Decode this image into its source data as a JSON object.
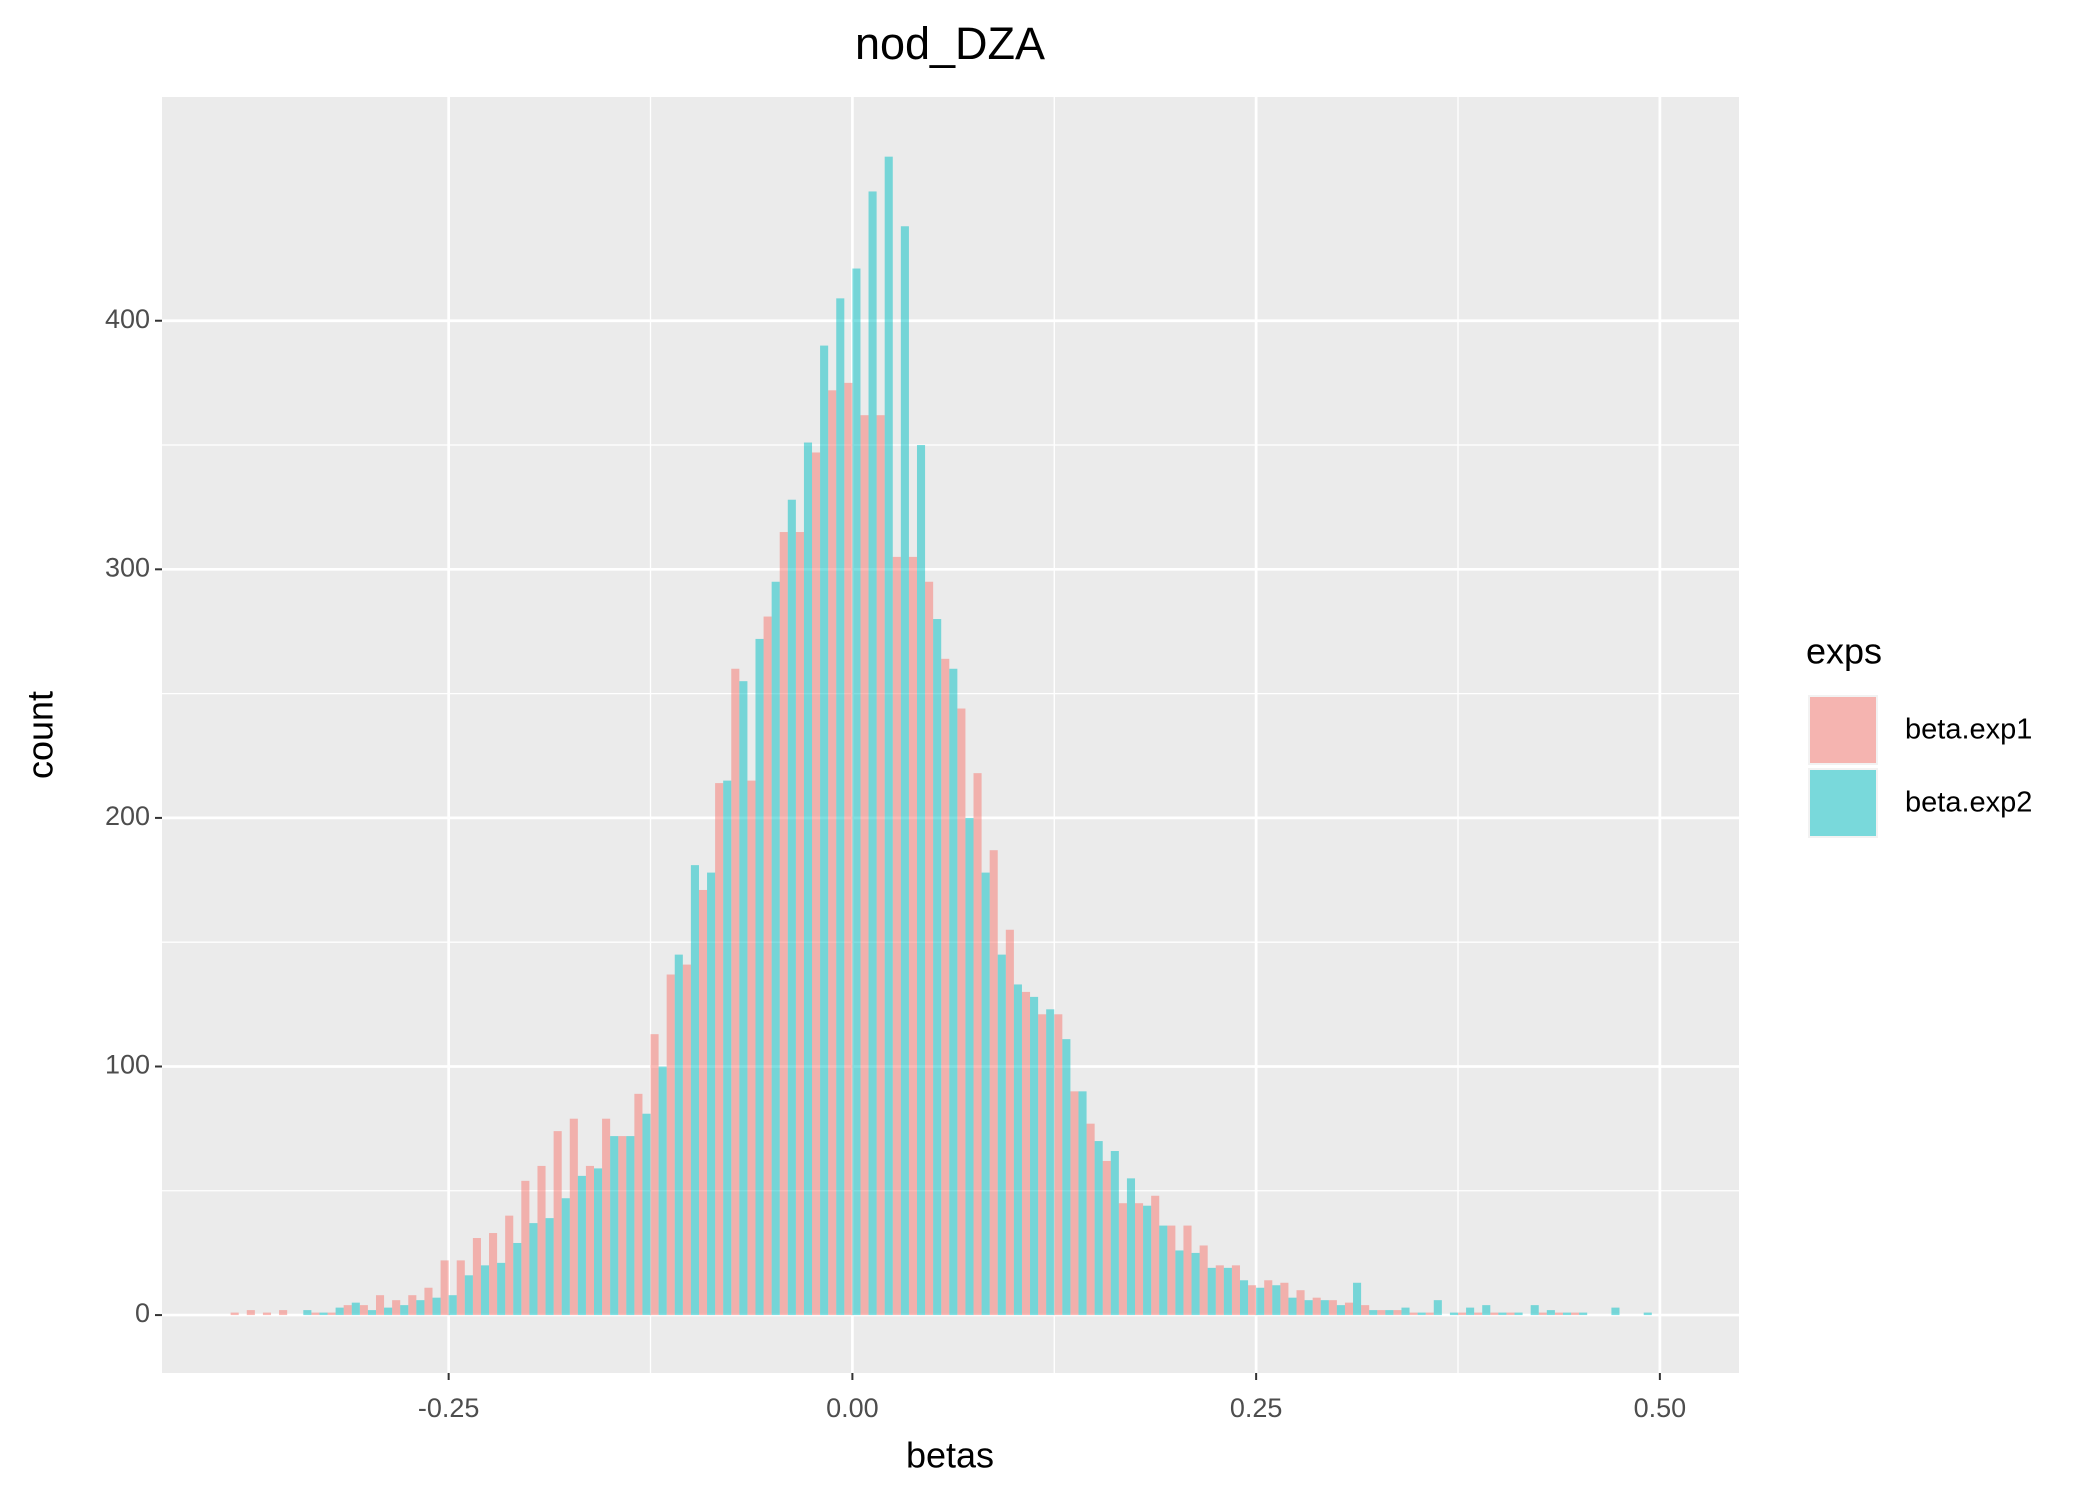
{
  "chart_data": {
    "type": "histogram",
    "title": "nod_DZA",
    "xlabel": "betas",
    "ylabel": "count",
    "legend_title": "exps",
    "legend_position": "right",
    "grid": true,
    "alpha": 0.5,
    "position": "dodge",
    "bins": [
      -0.385,
      -0.375,
      -0.365,
      -0.355,
      -0.345,
      -0.335,
      -0.325,
      -0.315,
      -0.305,
      -0.295,
      -0.285,
      -0.275,
      -0.265,
      -0.255,
      -0.245,
      -0.235,
      -0.225,
      -0.215,
      -0.205,
      -0.195,
      -0.185,
      -0.175,
      -0.165,
      -0.155,
      -0.145,
      -0.135,
      -0.125,
      -0.115,
      -0.105,
      -0.095,
      -0.085,
      -0.075,
      -0.065,
      -0.055,
      -0.045,
      -0.035,
      -0.025,
      -0.015,
      -0.005,
      0.005,
      0.015,
      0.025,
      0.035,
      0.045,
      0.055,
      0.065,
      0.075,
      0.085,
      0.095,
      0.105,
      0.115,
      0.125,
      0.135,
      0.145,
      0.155,
      0.165,
      0.175,
      0.185,
      0.195,
      0.205,
      0.215,
      0.225,
      0.235,
      0.245,
      0.255,
      0.265,
      0.275,
      0.285,
      0.295,
      0.305,
      0.315,
      0.325,
      0.335,
      0.345,
      0.355,
      0.365,
      0.375,
      0.385,
      0.395,
      0.405,
      0.415,
      0.425,
      0.435,
      0.445,
      0.455,
      0.465,
      0.475,
      0.485,
      0.495,
      0.505
    ],
    "series": [
      {
        "name": "beta.exp1",
        "color": "#F8766D",
        "values": [
          1,
          2,
          1,
          2,
          0,
          1,
          1,
          4,
          4,
          8,
          6,
          8,
          11,
          22,
          22,
          31,
          33,
          40,
          54,
          60,
          74,
          79,
          60,
          79,
          72,
          89,
          113,
          137,
          141,
          171,
          214,
          260,
          215,
          281,
          315,
          315,
          347,
          372,
          375,
          362,
          362,
          305,
          305,
          295,
          264,
          244,
          218,
          187,
          155,
          130,
          121,
          121,
          90,
          77,
          62,
          45,
          45,
          48,
          36,
          36,
          28,
          20,
          20,
          12,
          14,
          13,
          10,
          7,
          6,
          5,
          4,
          2,
          2,
          1,
          1,
          0,
          1,
          1,
          1,
          1,
          0,
          1,
          1,
          1,
          0,
          0,
          0,
          0,
          0
        ]
      },
      {
        "name": "beta.exp2",
        "color": "#00BFC4",
        "values": [
          0,
          0,
          0,
          0,
          2,
          1,
          3,
          5,
          2,
          3,
          4,
          6,
          7,
          8,
          16,
          20,
          21,
          29,
          37,
          39,
          47,
          56,
          59,
          72,
          72,
          81,
          100,
          145,
          181,
          178,
          215,
          255,
          272,
          295,
          328,
          351,
          390,
          409,
          421,
          452,
          466,
          438,
          350,
          280,
          260,
          200,
          178,
          145,
          133,
          128,
          123,
          111,
          90,
          70,
          66,
          55,
          44,
          36,
          26,
          25,
          19,
          19,
          14,
          11,
          12,
          7,
          6,
          6,
          4,
          13,
          2,
          2,
          3,
          1,
          6,
          1,
          3,
          4,
          1,
          1,
          4,
          2,
          1,
          1,
          0,
          3,
          0,
          1,
          0
        ]
      }
    ],
    "xlim": [
      -0.4275,
      0.549
    ],
    "ylim": [
      -23.3,
      490
    ],
    "xticks": [
      {
        "value": -0.25,
        "label": "-0.25"
      },
      {
        "value": 0,
        "label": "0.00"
      },
      {
        "value": 0.25,
        "label": "0.25"
      },
      {
        "value": 0.5,
        "label": "0.50"
      }
    ],
    "yticks": [
      0,
      100,
      200,
      300,
      400
    ]
  }
}
